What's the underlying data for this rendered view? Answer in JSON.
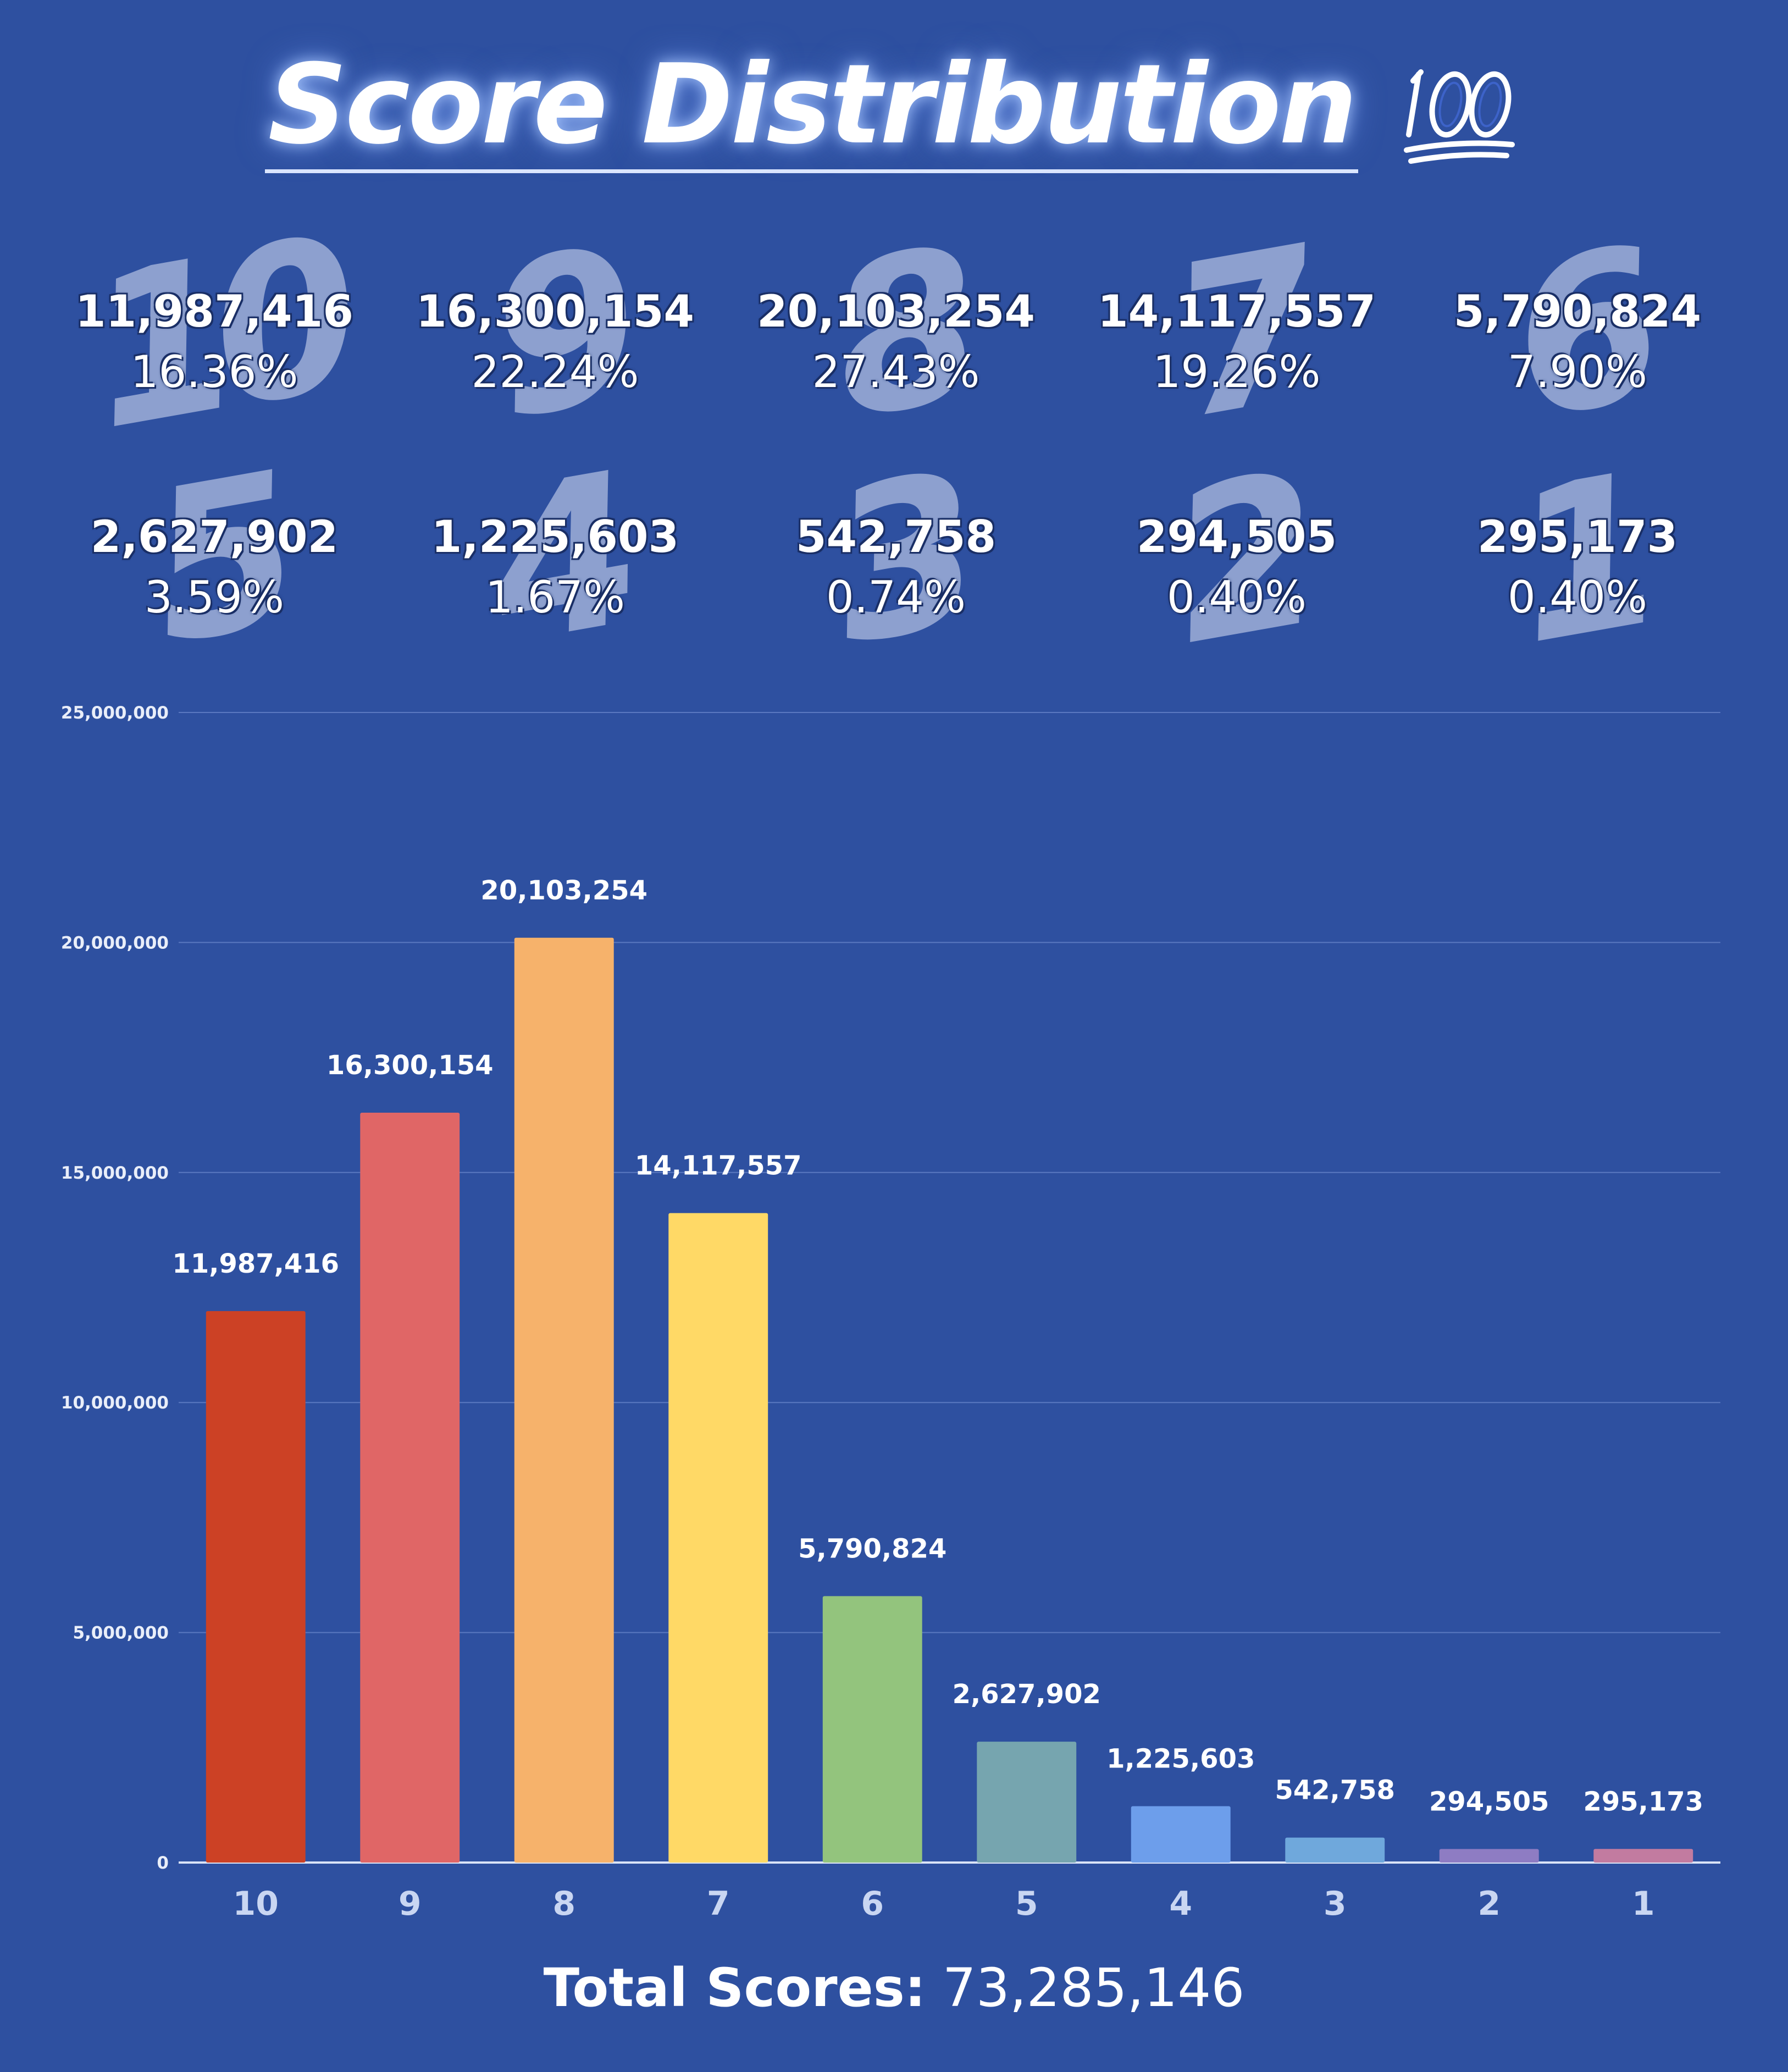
{
  "title": "Score Distribution",
  "title_icon": "hundred-points-icon",
  "stats": [
    {
      "score": "10",
      "count": "11,987,416",
      "percent": "16.36%"
    },
    {
      "score": "9",
      "count": "16,300,154",
      "percent": "22.24%"
    },
    {
      "score": "8",
      "count": "20,103,254",
      "percent": "27.43%"
    },
    {
      "score": "7",
      "count": "14,117,557",
      "percent": "19.26%"
    },
    {
      "score": "6",
      "count": "5,790,824",
      "percent": "7.90%"
    },
    {
      "score": "5",
      "count": "2,627,902",
      "percent": "3.59%"
    },
    {
      "score": "4",
      "count": "1,225,603",
      "percent": "1.67%"
    },
    {
      "score": "3",
      "count": "542,758",
      "percent": "0.74%"
    },
    {
      "score": "2",
      "count": "294,505",
      "percent": "0.40%"
    },
    {
      "score": "1",
      "count": "295,173",
      "percent": "0.40%"
    }
  ],
  "chart_data": {
    "type": "bar",
    "title": "",
    "xlabel": "",
    "ylabel": "",
    "categories": [
      "10",
      "9",
      "8",
      "7",
      "6",
      "5",
      "4",
      "3",
      "2",
      "1"
    ],
    "values": [
      11987416,
      16300154,
      20103254,
      14117557,
      5790824,
      2627902,
      1225603,
      542758,
      294505,
      295173
    ],
    "value_labels": [
      "11,987,416",
      "16,300,154",
      "20,103,254",
      "14,117,557",
      "5,790,824",
      "2,627,902",
      "1,225,603",
      "542,758",
      "294,505",
      "295,173"
    ],
    "ylim": [
      0,
      25000000
    ],
    "yticks": [
      0,
      5000000,
      10000000,
      15000000,
      20000000,
      25000000
    ],
    "ytick_labels": [
      "0",
      "5,000,000",
      "10,000,000",
      "15,000,000",
      "20,000,000",
      "25,000,000"
    ],
    "grid": true,
    "bar_colors": [
      "#cc4125",
      "#e06666",
      "#f6b26b",
      "#ffd966",
      "#93c47d",
      "#76a5af",
      "#6d9eeb",
      "#6fa8dc",
      "#8e7cc3",
      "#c27ba0"
    ],
    "grid_color": "#5a78c0",
    "axis_color": "#dbe4f7"
  },
  "total": {
    "label": "Total Scores:",
    "value": "73,285,146"
  }
}
